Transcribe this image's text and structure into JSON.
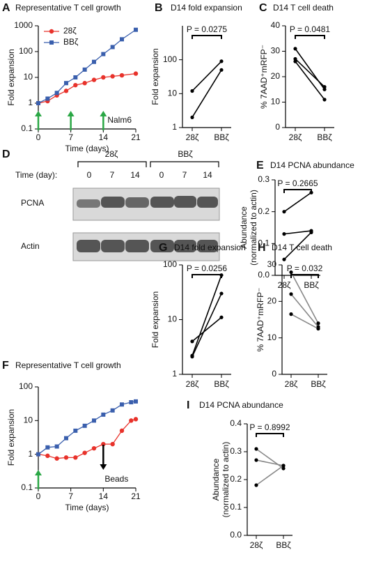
{
  "chart_data": [
    {
      "panel": "A",
      "type": "line",
      "title": "Representative T cell growth",
      "xlabel": "Time (days)",
      "ylabel": "Fold expansion",
      "log": true,
      "xlim": [
        0,
        21
      ],
      "xticks": [
        0,
        7,
        14,
        21
      ],
      "ylim": [
        0.1,
        1000
      ],
      "yticks": [
        0.1,
        1,
        10,
        100,
        1000
      ],
      "legend": "upper left",
      "x": [
        0,
        2,
        4,
        6,
        8,
        10,
        12,
        14,
        16,
        18,
        21
      ],
      "series": [
        {
          "name": "28ζ",
          "color": "#e8322b",
          "marker": "circle",
          "values": [
            1,
            1.2,
            2,
            3,
            5,
            6,
            8,
            10,
            11,
            12,
            14
          ]
        },
        {
          "name": "BBζ",
          "color": "#3a5fad",
          "marker": "square",
          "values": [
            1,
            1.5,
            2.5,
            6,
            10,
            20,
            40,
            80,
            150,
            300,
            700
          ]
        }
      ],
      "arrows": [
        {
          "x": 0,
          "color": "#2aa745",
          "direction": "up"
        },
        {
          "x": 7,
          "color": "#2aa745",
          "direction": "up"
        },
        {
          "x": 14,
          "color": "#2aa745",
          "direction": "up"
        }
      ],
      "annotation": "Nalm6"
    },
    {
      "panel": "B",
      "type": "paired",
      "title": "D14 fold expansion",
      "ylabel": "Fold expansion",
      "log": true,
      "ylim": [
        1,
        1000
      ],
      "yticks": [
        1,
        10,
        100
      ],
      "categories": [
        "28ζ",
        "BBζ"
      ],
      "marker_color": "#000",
      "series": [
        {
          "color": "#000",
          "values": [
            12,
            90
          ]
        },
        {
          "color": "#000",
          "values": [
            2,
            50
          ]
        }
      ],
      "annotation": "P = 0.0275"
    },
    {
      "panel": "C",
      "type": "paired",
      "title": "D14 T cell death",
      "ylabel": "% 7AAD⁺mRFP⁻",
      "ylim": [
        0,
        40
      ],
      "yticks": [
        0,
        10,
        20,
        30,
        40
      ],
      "categories": [
        "28ζ",
        "BBζ"
      ],
      "marker_color": "#000",
      "series": [
        {
          "color": "#000",
          "values": [
            31,
            15
          ]
        },
        {
          "color": "#000",
          "values": [
            27,
            16
          ]
        },
        {
          "color": "#000",
          "values": [
            26,
            11
          ]
        }
      ],
      "annotation": "P = 0.0481"
    },
    {
      "panel": "E",
      "type": "paired",
      "title": "D14 PCNA abundance",
      "ylabel": [
        "Abundance",
        "(normalized to actin)"
      ],
      "ylim": [
        0,
        0.3
      ],
      "yticks": [
        {
          "value": 0,
          "label": "0.0"
        },
        0.1,
        0.2,
        0.3
      ],
      "categories": [
        "28ζ",
        "BBζ"
      ],
      "marker_color": "#000",
      "series": [
        {
          "color": "#000",
          "values": [
            0.2,
            0.26
          ]
        },
        {
          "color": "#000",
          "values": [
            0.13,
            0.14
          ]
        },
        {
          "color": "#000",
          "values": [
            0.05,
            0.135
          ]
        }
      ],
      "annotation": "P = 0.2665"
    },
    {
      "panel": "F",
      "type": "line",
      "title": "Representative T cell growth",
      "xlabel": "Time (days)",
      "ylabel": "Fold expansion",
      "log": true,
      "xlim": [
        0,
        21
      ],
      "xticks": [
        0,
        7,
        14,
        21
      ],
      "ylim": [
        0.1,
        100
      ],
      "yticks": [
        0.1,
        1,
        10,
        100
      ],
      "x": [
        0,
        2,
        4,
        6,
        8,
        10,
        12,
        14,
        16,
        18,
        20,
        21
      ],
      "series": [
        {
          "color": "#e8322b",
          "marker": "circle",
          "values": [
            1,
            0.9,
            0.75,
            0.8,
            0.8,
            1.1,
            1.5,
            2,
            2,
            5,
            10,
            11
          ]
        },
        {
          "color": "#3a5fad",
          "marker": "square",
          "values": [
            1,
            1.6,
            1.7,
            3,
            5,
            7,
            10,
            15,
            20,
            30,
            35,
            37
          ]
        }
      ],
      "arrows": [
        {
          "x": 0,
          "color": "#2aa745",
          "direction": "up"
        },
        {
          "x": 14,
          "color": "#000",
          "direction": "down"
        }
      ],
      "annotation": "Beads"
    },
    {
      "panel": "G",
      "type": "paired",
      "title": "D14 fold expansion",
      "ylabel": "Fold expansion",
      "log": true,
      "ylim": [
        1,
        100
      ],
      "yticks": [
        1,
        10,
        100
      ],
      "categories": [
        "28ζ",
        "BBζ"
      ],
      "marker_color": "#000",
      "series": [
        {
          "color": "#000",
          "values": [
            4,
            11
          ]
        },
        {
          "color": "#000",
          "values": [
            2.2,
            65
          ]
        },
        {
          "color": "#000",
          "values": [
            2.1,
            30
          ]
        }
      ],
      "annotation": "P = 0.0256"
    },
    {
      "panel": "H",
      "type": "paired",
      "title": "D14 T cell death",
      "ylabel": "% 7AAD⁺mRFP⁻",
      "ylim": [
        0,
        30
      ],
      "yticks": [
        0,
        10,
        20,
        30
      ],
      "categories": [
        "28ζ",
        "BBζ"
      ],
      "marker_color": "#000",
      "series": [
        {
          "color": "#888",
          "values": [
            28,
            14
          ]
        },
        {
          "color": "#888",
          "values": [
            22,
            13
          ]
        },
        {
          "color": "#888",
          "values": [
            16.5,
            12.5
          ]
        }
      ],
      "annotation": "P = 0.032"
    },
    {
      "panel": "I",
      "type": "paired",
      "title": "D14 PCNA abundance",
      "ylabel": [
        "Abundance",
        "(normalized to actin)"
      ],
      "ylim": [
        0,
        0.4
      ],
      "yticks": [
        {
          "value": 0,
          "label": "0.0"
        },
        0.1,
        0.2,
        0.3,
        0.4
      ],
      "categories": [
        "28ζ",
        "BBζ"
      ],
      "marker_color": "#000",
      "series": [
        {
          "color": "#888",
          "values": [
            0.31,
            0.24
          ]
        },
        {
          "color": "#888",
          "values": [
            0.27,
            0.25
          ]
        },
        {
          "color": "#888",
          "values": [
            0.18,
            0.25
          ]
        }
      ],
      "annotation": "P = 0.8992"
    }
  ],
  "blot": {
    "panel": "D",
    "groups": [
      "28ζ",
      "BBζ"
    ],
    "time_label": "Time (day):",
    "times": [
      "0",
      "7",
      "14",
      "0",
      "7",
      "14"
    ],
    "rows": [
      "PCNA",
      "Actin"
    ]
  }
}
